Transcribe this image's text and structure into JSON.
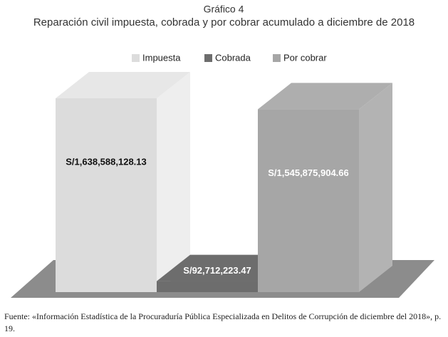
{
  "chart_data": {
    "type": "bar3d",
    "title": "Gráfico 4",
    "subtitle": "Reparación civil impuesta, cobrada y por cobrar acumulado a diciembre de 2018",
    "series": [
      {
        "name": "Impuesta",
        "color": "#dcdcdc",
        "values": [
          1638588128.13
        ],
        "value_labels": [
          "S/1,638,588,128.13"
        ]
      },
      {
        "name": "Cobrada",
        "color": "#6d6d6d",
        "values": [
          92712223.47
        ],
        "value_labels": [
          "S/92,712,223.47"
        ]
      },
      {
        "name": "Por cobrar",
        "color": "#a6a6a6",
        "values": [
          1545875904.66
        ],
        "value_labels": [
          "S/1,545,875,904.66"
        ]
      }
    ],
    "source": "Fuente: «Información Estadística de la Procuraduría Pública Especializada en Delitos de Corrupción de diciembre del 2018», p. 19."
  }
}
